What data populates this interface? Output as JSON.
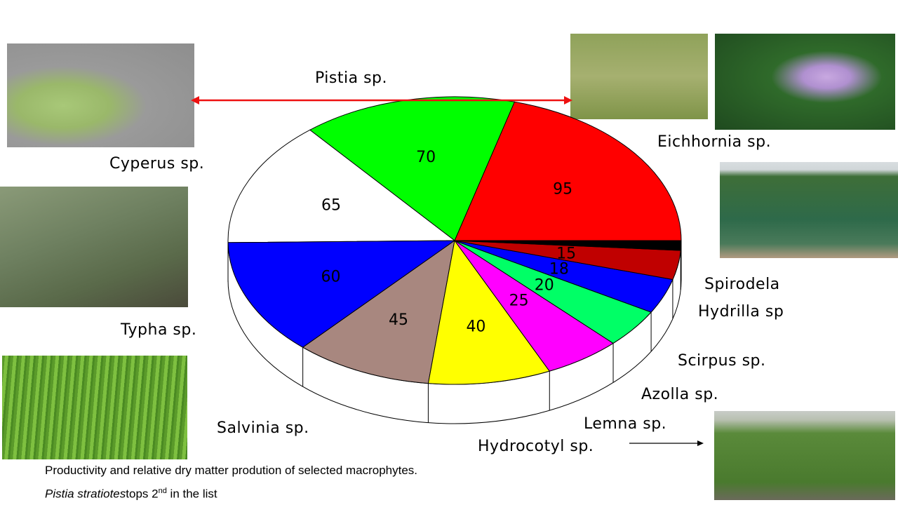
{
  "chart_data": {
    "type": "pie",
    "style": "3d",
    "slices": [
      {
        "label": "Eichhornia sp.",
        "value": 95,
        "color": "#ff0000",
        "show_value": true
      },
      {
        "label": "Pistia sp.",
        "value": 70,
        "color": "#00ff00",
        "show_value": true
      },
      {
        "label": "Cyperus sp.",
        "value": 65,
        "color": "#ffffff",
        "show_value": true
      },
      {
        "label": "Typha sp.",
        "value": 60,
        "color": "#0000ff",
        "show_value": true
      },
      {
        "label": "Salvinia sp.",
        "value": 45,
        "color": "#a8877f",
        "show_value": true
      },
      {
        "label": "Hydrocotyl sp.",
        "value": 40,
        "color": "#ffff00",
        "show_value": true
      },
      {
        "label": "Lemna sp.",
        "value": 25,
        "color": "#ff00ff",
        "show_value": true
      },
      {
        "label": "Azolla sp.",
        "value": 20,
        "color": "#00ff66",
        "show_value": true
      },
      {
        "label": "Scirpus sp.",
        "value": 18,
        "color": "#0000ff",
        "show_value": true
      },
      {
        "label": "Hydrilla sp",
        "value": 15,
        "color": "#c00000",
        "show_value": true
      },
      {
        "label": "Spirodela",
        "value": 5,
        "color": "#000000",
        "show_value": false
      }
    ]
  },
  "labels": {
    "pistia": "Pistia sp.",
    "eichhornia": "Eichhornia sp.",
    "cyperus": "Cyperus sp.",
    "typha": "Typha sp.",
    "salvinia": "Salvinia sp.",
    "spirodela": "Spirodela",
    "hydrilla": "Hydrilla sp",
    "scirpus": "Scirpus sp.",
    "azolla": "Azolla sp.",
    "lemna": "Lemna sp.",
    "hydrocotyl": "Hydrocotyl sp."
  },
  "caption": {
    "line1": "Productivity and relative dry matter prodution of selected macrophytes.",
    "line2_italic": "Pistia stratiotes",
    "line2_rest": "tops 2",
    "line2_sup": "nd",
    "line2_end": " in the list"
  },
  "colors": {
    "arrow_red": "#ee1111"
  }
}
